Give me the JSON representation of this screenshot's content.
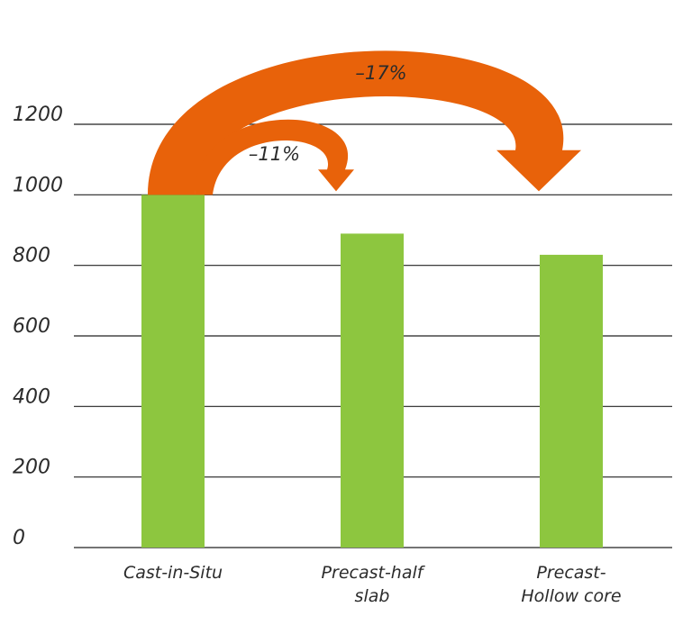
{
  "chart_data": {
    "type": "bar",
    "title": "",
    "xlabel": "",
    "ylabel": "",
    "categories": [
      [
        "Cast-in-Situ"
      ],
      [
        "Precast-half",
        "slab"
      ],
      [
        "Precast-",
        "Hollow core"
      ]
    ],
    "values": [
      1000,
      890,
      830
    ],
    "ylim": [
      0,
      1200
    ],
    "yticks": [
      "0",
      "200",
      "400",
      "600",
      "800",
      "1000",
      "1200"
    ],
    "grid": true,
    "annotations": [
      {
        "text": "–11%",
        "from_category": 0,
        "to_category": 1
      },
      {
        "text": "–17%",
        "from_category": 0,
        "to_category": 2
      }
    ],
    "colors": {
      "bar": "#8dc63f",
      "arrow": "#e8620a",
      "grid": "#222222"
    }
  }
}
